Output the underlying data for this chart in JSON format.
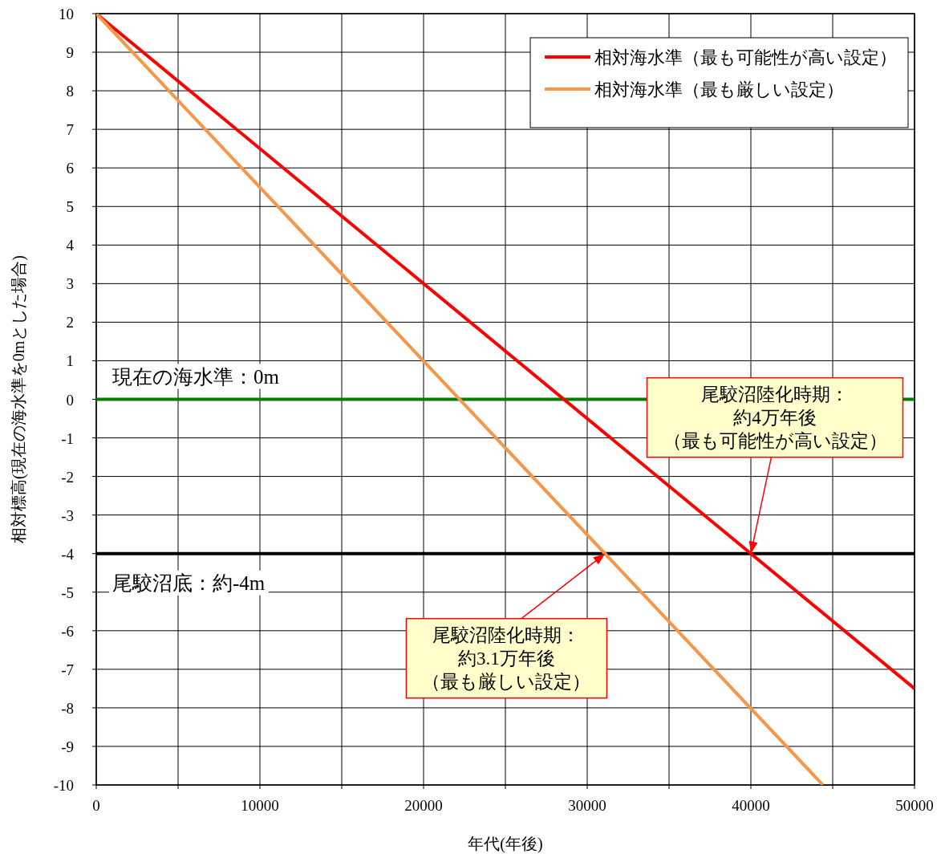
{
  "chart_data": {
    "type": "line",
    "xlabel": "年代(年後)",
    "ylabel": "相対標高(現在の海水準を0mとした場合)",
    "xlim": [
      0,
      50000
    ],
    "ylim": [
      -10,
      10
    ],
    "xticks": [
      0,
      {
        "value": 5000,
        "label": null
      },
      10000,
      {
        "value": 15000,
        "label": null
      },
      20000,
      {
        "value": 25000,
        "label": null
      },
      30000,
      {
        "value": 35000,
        "label": null
      },
      40000,
      {
        "value": 45000,
        "label": null
      },
      50000
    ],
    "yticks": [
      -10,
      -9,
      -8,
      -7,
      -6,
      -5,
      -4,
      -3,
      -2,
      -1,
      0,
      1,
      2,
      3,
      4,
      5,
      6,
      7,
      8,
      9,
      10
    ],
    "grid": true,
    "legend": "top right",
    "marker": "none",
    "line_style": "solid",
    "series": [
      {
        "name": "相対海水準（最も可能性が高い設定）",
        "color": "#ff0000",
        "x": [
          0,
          50000
        ],
        "values": [
          10,
          -7.5
        ]
      },
      {
        "name": "相対海水準（最も厳しい設定）",
        "color": "#f79646",
        "x": [
          0,
          44400
        ],
        "values": [
          10,
          -10
        ]
      }
    ],
    "ref_lines": [
      {
        "axis": "y",
        "value": 0,
        "label": "現在の海水準：0m",
        "color": "#008000"
      },
      {
        "axis": "y",
        "value": -4,
        "label": "尾駮沼底：約-4m",
        "color": "#000000"
      }
    ],
    "annotations": [
      {
        "text": "尾駮沼陸化時期：約4万年後（最も可能性が高い設定）",
        "x": 40000,
        "y": -4
      },
      {
        "text": "尾駮沼陸化時期：約3.1万年後（最も厳しい設定）",
        "x": 31100,
        "y": -4
      }
    ]
  }
}
